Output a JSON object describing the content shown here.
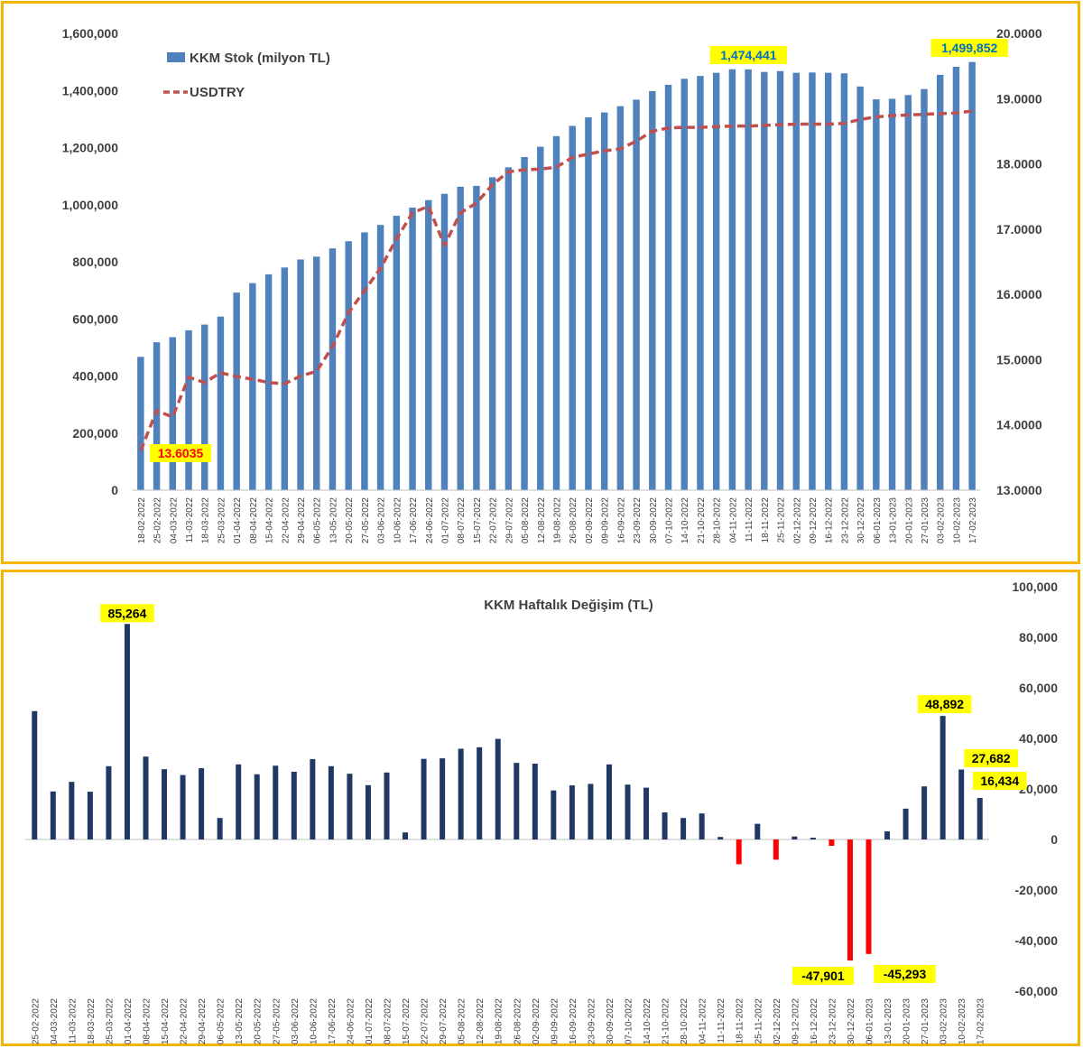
{
  "colors": {
    "stock_bar": "#4f81bd",
    "usd_line": "#c0504d",
    "weekly_pos": "#1f3864",
    "weekly_neg": "#ff0000",
    "highlight_bg": "#ffff00",
    "frame": "#f5b400"
  },
  "chart_data": [
    {
      "type": "bar",
      "combo": "bar+line",
      "legend_placement": "top-left",
      "categories": [
        "18-02-2022",
        "25-02-2022",
        "04-03-2022",
        "11-03-2022",
        "18-03-2022",
        "25-03-2022",
        "01-04-2022",
        "08-04-2022",
        "15-04-2022",
        "22-04-2022",
        "29-04-2022",
        "06-05-2022",
        "13-05-2022",
        "20-05-2022",
        "27-05-2022",
        "03-06-2022",
        "10-06-2022",
        "17-06-2022",
        "24-06-2022",
        "01-07-2022",
        "08-07-2022",
        "15-07-2022",
        "22-07-2022",
        "29-07-2022",
        "05-08-2022",
        "12-08-2022",
        "19-08-2022",
        "26-08-2022",
        "02-09-2022",
        "09-09-2022",
        "16-09-2022",
        "23-09-2022",
        "30-09-2022",
        "07-10-2022",
        "14-10-2022",
        "21-10-2022",
        "28-10-2022",
        "04-11-2022",
        "11-11-2022",
        "18-11-2022",
        "25-11-2022",
        "02-12-2022",
        "09-12-2022",
        "16-12-2022",
        "23-12-2022",
        "30-12-2022",
        "06-01-2023",
        "13-01-2023",
        "20-01-2023",
        "27-01-2023",
        "03-02-2023",
        "10-02-2023",
        "17-02-2023"
      ],
      "series": [
        {
          "name": "KKM Stok (milyon TL)",
          "axis": "left",
          "type": "bar",
          "values": [
            467000,
            518000,
            536000,
            560000,
            580000,
            608000,
            692000,
            725000,
            756000,
            780000,
            808000,
            818000,
            847000,
            872000,
            903000,
            929000,
            961000,
            990000,
            1016000,
            1038000,
            1063000,
            1066000,
            1096000,
            1131000,
            1167000,
            1203000,
            1240000,
            1276000,
            1306000,
            1323000,
            1345000,
            1368000,
            1398000,
            1420000,
            1441000,
            1451000,
            1462000,
            1474441,
            1474000,
            1465000,
            1468000,
            1462000,
            1463000,
            1462000,
            1460000,
            1414000,
            1369000,
            1371000,
            1384000,
            1405000,
            1455000,
            1483000,
            1499852
          ]
        },
        {
          "name": "USDTRY",
          "axis": "right",
          "type": "line",
          "style": "dashed",
          "values": [
            13.6035,
            14.22,
            14.12,
            14.73,
            14.65,
            14.8,
            14.74,
            14.7,
            14.65,
            14.63,
            14.75,
            14.82,
            15.2,
            15.72,
            16.06,
            16.4,
            16.85,
            17.25,
            17.35,
            16.75,
            17.25,
            17.4,
            17.68,
            17.88,
            17.91,
            17.92,
            17.95,
            18.1,
            18.15,
            18.2,
            18.23,
            18.35,
            18.5,
            18.55,
            18.56,
            18.56,
            18.57,
            18.58,
            18.58,
            18.59,
            18.6,
            18.61,
            18.61,
            18.61,
            18.62,
            18.68,
            18.72,
            18.74,
            18.75,
            18.76,
            18.77,
            18.78,
            18.81
          ]
        }
      ],
      "y_left": {
        "range": [
          0,
          1600000
        ],
        "ticks": [
          "0",
          "200,000",
          "400,000",
          "600,000",
          "800,000",
          "1,000,000",
          "1,200,000",
          "1,400,000",
          "1,600,000"
        ]
      },
      "y_right": {
        "range": [
          13.0,
          20.0
        ],
        "ticks": [
          "13.0000",
          "14.0000",
          "15.0000",
          "16.0000",
          "17.0000",
          "18.0000",
          "19.0000",
          "20.0000"
        ]
      },
      "annotations": [
        {
          "label": "13.6035",
          "series": "USDTRY",
          "category": "18-02-2022"
        },
        {
          "label": "1,474,441",
          "series": "KKM Stok (milyon TL)",
          "category": "04-11-2022"
        },
        {
          "label": "1,499,852",
          "series": "KKM Stok (milyon TL)",
          "category": "17-02-2023"
        }
      ],
      "grid": false
    },
    {
      "type": "bar",
      "title": "KKM Haftalık Değişim (TL)",
      "categories": [
        "25-02-2022",
        "04-03-2022",
        "11-03-2022",
        "18-03-2022",
        "25-03-2022",
        "01-04-2022",
        "08-04-2022",
        "15-04-2022",
        "22-04-2022",
        "29-04-2022",
        "06-05-2022",
        "13-05-2022",
        "20-05-2022",
        "27-05-2022",
        "03-06-2022",
        "10-06-2022",
        "17-06-2022",
        "24-06-2022",
        "01-07-2022",
        "08-07-2022",
        "15-07-2022",
        "22-07-2022",
        "29-07-2022",
        "05-08-2022",
        "12-08-2022",
        "19-08-2022",
        "26-08-2022",
        "02-09-2022",
        "09-09-2022",
        "16-09-2022",
        "23-09-2022",
        "30-09-2022",
        "07-10-2022",
        "14-10-2022",
        "21-10-2022",
        "28-10-2022",
        "04-11-2022",
        "11-11-2022",
        "18-11-2022",
        "25-11-2022",
        "02-12-2022",
        "09-12-2022",
        "16-12-2022",
        "23-12-2022",
        "30-12-2022",
        "06-01-2023",
        "13-01-2023",
        "20-01-2023",
        "27-01-2023",
        "03-02-2023",
        "10-02-2023",
        "17-02-2023"
      ],
      "x_tick_labels": [
        "25-02-2022",
        "04-03-2022",
        "11-03-2022",
        "18-03-2022",
        "25-03-2022",
        "01-04-2022",
        "08-04-2022",
        "15-04-2022",
        "22-04-2022",
        "29-04-2022",
        "06-05-2022",
        "13-05-2022",
        "20-05-2022",
        "27-05-2022",
        "03-06-2022",
        "10-06-2022",
        "17-06-2022",
        "24-06-2022",
        "01-07-2022",
        "08-07-2022",
        "15-07-2022",
        "22-07-2022",
        "29-07-2022",
        "05-08-2022",
        "12-08-2022",
        "19-08-2022",
        "26-08-2022",
        "02-09-2022",
        "09-09-2022",
        "16-09-2022",
        "23-09-2022",
        "30-09-2022",
        "07-10-2022",
        "14-10-2022",
        "21-10-2022",
        "28-10-2022",
        "04-11-2022",
        "11-11-2022",
        "18-11-2022",
        "25-11-2022",
        "02-12-2022",
        "09-12-2022",
        "16-12-2022",
        "23-12-2022",
        "30-12-2022",
        "06-01-2023",
        "13-01-2023",
        "20-01-2023",
        "27-01-2023",
        "03-02-2023",
        "10-02-2023",
        "17-02-2023"
      ],
      "values": [
        50800,
        19000,
        22800,
        18900,
        29000,
        85264,
        32800,
        27800,
        25500,
        28200,
        8500,
        29700,
        25800,
        29200,
        26800,
        31800,
        29000,
        26000,
        21500,
        26500,
        2800,
        31900,
        32100,
        35900,
        36500,
        39800,
        30300,
        30000,
        19400,
        21400,
        22000,
        29700,
        21700,
        20500,
        10700,
        8500,
        10300,
        1000,
        -9800,
        6200,
        -8000,
        1200,
        700,
        -2500,
        -47901,
        -45293,
        3200,
        12200,
        21000,
        48892,
        27682,
        16434
      ],
      "y_right": {
        "range": [
          -60000,
          100000
        ],
        "ticks": [
          "-60,000",
          "-40,000",
          "-20,000",
          "0",
          "20,000",
          "40,000",
          "60,000",
          "80,000",
          "100,000"
        ]
      },
      "annotations": [
        {
          "label": "85,264",
          "category": "01-04-2022"
        },
        {
          "label": "-47,901",
          "category": "30-12-2022"
        },
        {
          "label": "-45,293",
          "category": "06-01-2023"
        },
        {
          "label": "48,892",
          "category": "03-02-2023"
        },
        {
          "label": "27,682",
          "category": "10-02-2023"
        },
        {
          "label": "16,434",
          "category": "17-02-2023"
        }
      ],
      "grid": false
    }
  ]
}
